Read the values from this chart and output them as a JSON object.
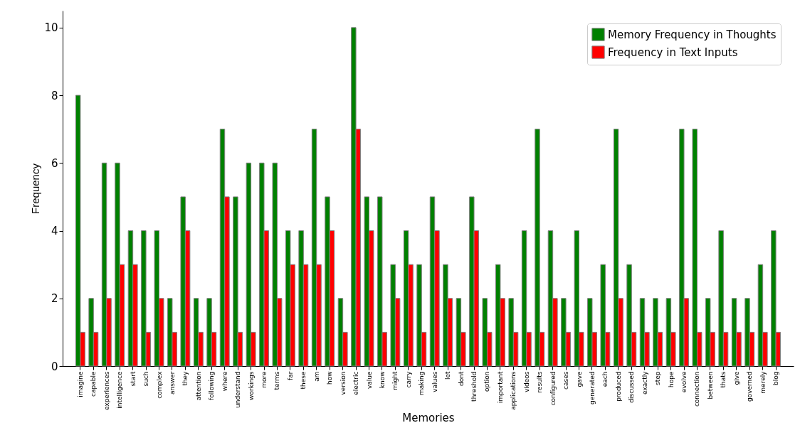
{
  "chart_data": {
    "type": "bar",
    "xlabel": "Memories",
    "ylabel": "Frequency",
    "categories": [
      "imagine",
      "capable",
      "experiences",
      "intelligence",
      "start",
      "such",
      "complex",
      "answer",
      "they",
      "attention",
      "following",
      "where",
      "understand",
      "workings",
      "more",
      "terms",
      "far",
      "these",
      "am",
      "how",
      "version",
      "electric",
      "value",
      "know",
      "might",
      "carry",
      "making",
      "values",
      "let",
      "dont",
      "threshold",
      "option",
      "important",
      "applications",
      "videos",
      "results",
      "configured",
      "cases",
      "gave",
      "generated",
      "each",
      "produced",
      "discussed",
      "exactly",
      "step",
      "hope",
      "evolve",
      "connection",
      "between",
      "thats",
      "give",
      "governed",
      "merely",
      "blog"
    ],
    "series": [
      {
        "name": "Memory Frequency in Thoughts",
        "color": "#008000",
        "values": [
          8,
          2,
          6,
          6,
          4,
          4,
          4,
          2,
          5,
          2,
          2,
          7,
          5,
          6,
          6,
          6,
          4,
          4,
          7,
          5,
          2,
          10,
          5,
          5,
          3,
          4,
          3,
          5,
          3,
          2,
          5,
          2,
          3,
          2,
          4,
          7,
          4,
          2,
          4,
          2,
          3,
          7,
          3,
          2,
          2,
          2,
          7,
          7,
          2,
          4,
          2,
          2,
          3,
          4
        ]
      },
      {
        "name": "Frequency in Text Inputs",
        "color": "#ff0000",
        "values": [
          1,
          1,
          2,
          3,
          3,
          1,
          2,
          1,
          4,
          1,
          1,
          5,
          1,
          1,
          4,
          2,
          3,
          3,
          3,
          4,
          1,
          7,
          4,
          1,
          2,
          3,
          1,
          4,
          2,
          1,
          4,
          1,
          2,
          1,
          1,
          1,
          2,
          1,
          1,
          1,
          1,
          2,
          1,
          1,
          1,
          1,
          2,
          1,
          1,
          1,
          1,
          1,
          1,
          1
        ]
      }
    ],
    "ylim": [
      0,
      10.5
    ],
    "yticks": [
      0,
      2,
      4,
      6,
      8,
      10
    ],
    "grid": false,
    "legend": "top right"
  }
}
